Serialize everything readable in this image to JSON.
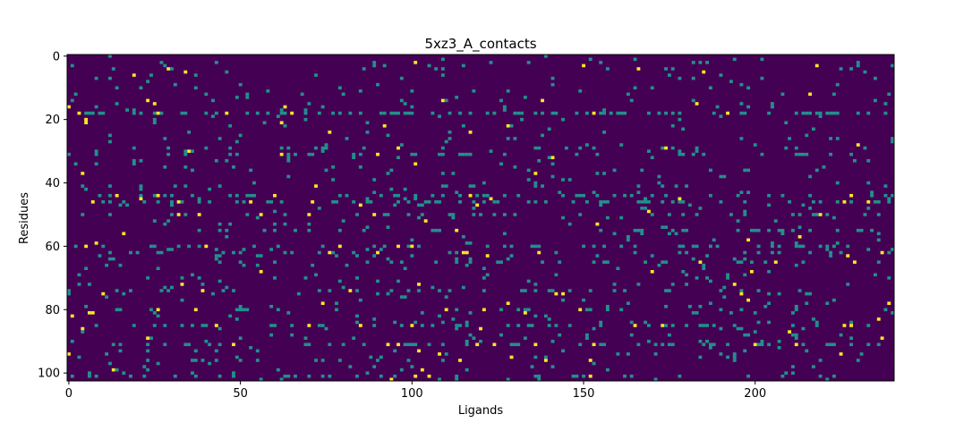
{
  "chart_data": {
    "type": "heatmap",
    "title": "5xz3_A_contacts",
    "xlabel": "Ligands",
    "ylabel": "Residues",
    "x_range": [
      0,
      241
    ],
    "y_range": [
      0,
      103
    ],
    "y_inverted": true,
    "x_ticks": [
      "0",
      "50",
      "100",
      "150",
      "200"
    ],
    "y_ticks": [
      "0",
      "20",
      "40",
      "60",
      "80",
      "100"
    ],
    "colormap": "viridis",
    "value_levels": [
      0,
      1,
      2
    ],
    "colors": {
      "background": "#440154",
      "mid": "#21918c",
      "high": "#fde725"
    },
    "grid": false,
    "legend": "none"
  }
}
